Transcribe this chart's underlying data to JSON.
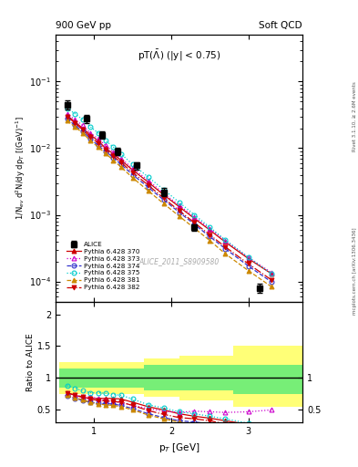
{
  "title_left": "900 GeV pp",
  "title_right": "Soft QCD",
  "plot_title": "pT($\\bar{\\Lambda}$) (|y| < 0.75)",
  "ylabel_main": "1/N$_{ev}$ d$^2$N/dy dp$_T$ [(GeV)$^{-1}$]",
  "ylabel_ratio": "Ratio to ALICE",
  "xlabel": "p$_T$ [GeV]",
  "watermark": "ALICE_2011_S8909580",
  "right_label": "mcplots.cern.ch [arXiv:1306.3436]",
  "rivet_label": "Rivet 3.1.10, ≥ 2.6M events",
  "alice_pt": [
    0.65,
    0.9,
    1.1,
    1.3,
    1.55,
    1.9,
    2.3,
    3.15
  ],
  "alice_y": [
    0.045,
    0.028,
    0.016,
    0.009,
    0.0055,
    0.0022,
    0.00065,
    8e-05
  ],
  "alice_yerr": [
    0.007,
    0.004,
    0.002,
    0.001,
    0.0007,
    0.0003,
    8e-05,
    1.2e-05
  ],
  "pythia_pt": [
    0.65,
    0.75,
    0.85,
    0.95,
    1.05,
    1.15,
    1.25,
    1.35,
    1.5,
    1.7,
    1.9,
    2.1,
    2.3,
    2.5,
    2.7,
    3.0,
    3.3
  ],
  "p370_y": [
    0.031,
    0.025,
    0.02,
    0.016,
    0.013,
    0.01,
    0.0082,
    0.0066,
    0.0047,
    0.0031,
    0.002,
    0.00133,
    0.00088,
    0.00059,
    0.00039,
    0.00022,
    0.00013
  ],
  "p373_y": [
    0.033,
    0.027,
    0.022,
    0.017,
    0.014,
    0.011,
    0.0088,
    0.007,
    0.005,
    0.0033,
    0.0021,
    0.0014,
    0.00093,
    0.00062,
    0.00041,
    0.00023,
    0.000135
  ],
  "p374_y": [
    0.028,
    0.022,
    0.018,
    0.014,
    0.011,
    0.009,
    0.0072,
    0.0057,
    0.004,
    0.0026,
    0.00168,
    0.0011,
    0.00072,
    0.00047,
    0.00031,
    0.00017,
    9.8e-05
  ],
  "p375_y": [
    0.04,
    0.033,
    0.027,
    0.021,
    0.017,
    0.013,
    0.0104,
    0.0082,
    0.0057,
    0.0037,
    0.0024,
    0.00155,
    0.001,
    0.00065,
    0.00042,
    0.00023,
    0.00013
  ],
  "p381_y": [
    0.026,
    0.021,
    0.017,
    0.013,
    0.0105,
    0.0083,
    0.0066,
    0.0052,
    0.0036,
    0.0023,
    0.00148,
    0.00096,
    0.00063,
    0.00041,
    0.00026,
    0.000145,
    8.3e-05
  ],
  "p382_y": [
    0.03,
    0.024,
    0.019,
    0.015,
    0.012,
    0.0096,
    0.0076,
    0.0061,
    0.0043,
    0.0028,
    0.00178,
    0.00116,
    0.00076,
    0.0005,
    0.00033,
    0.000183,
    0.000105
  ],
  "p370_ratio": [
    0.77,
    0.73,
    0.7,
    0.68,
    0.68,
    0.68,
    0.68,
    0.67,
    0.62,
    0.55,
    0.5,
    0.44,
    0.4,
    0.37,
    0.33,
    0.27,
    0.24
  ],
  "p373_ratio": [
    0.76,
    0.73,
    0.71,
    0.7,
    0.68,
    0.65,
    0.63,
    0.62,
    0.57,
    0.52,
    0.48,
    0.46,
    0.48,
    0.47,
    0.46,
    0.47,
    0.5
  ],
  "p374_ratio": [
    0.72,
    0.68,
    0.65,
    0.62,
    0.6,
    0.6,
    0.59,
    0.57,
    0.52,
    0.44,
    0.38,
    0.33,
    0.31,
    0.28,
    0.24,
    0.19,
    0.17
  ],
  "p375_ratio": [
    0.88,
    0.84,
    0.8,
    0.77,
    0.77,
    0.76,
    0.74,
    0.73,
    0.67,
    0.58,
    0.53,
    0.47,
    0.44,
    0.4,
    0.36,
    0.29,
    0.25
  ],
  "p381_ratio": [
    0.74,
    0.69,
    0.66,
    0.62,
    0.59,
    0.58,
    0.57,
    0.55,
    0.5,
    0.42,
    0.36,
    0.31,
    0.28,
    0.24,
    0.21,
    0.16,
    0.14
  ],
  "p382_ratio": [
    0.77,
    0.73,
    0.7,
    0.67,
    0.65,
    0.64,
    0.63,
    0.62,
    0.57,
    0.49,
    0.43,
    0.38,
    0.36,
    0.33,
    0.28,
    0.22,
    0.2
  ],
  "series": [
    {
      "label": "Pythia 6.428 370",
      "color": "#cc0000",
      "linestyle": "-",
      "marker": "^",
      "filled": true
    },
    {
      "label": "Pythia 6.428 373",
      "color": "#cc00cc",
      "linestyle": ":",
      "marker": "^",
      "filled": false
    },
    {
      "label": "Pythia 6.428 374",
      "color": "#3333cc",
      "linestyle": "--",
      "marker": "o",
      "filled": false
    },
    {
      "label": "Pythia 6.428 375",
      "color": "#00cccc",
      "linestyle": ":",
      "marker": "o",
      "filled": false
    },
    {
      "label": "Pythia 6.428 381",
      "color": "#cc8800",
      "linestyle": "--",
      "marker": "^",
      "filled": true
    },
    {
      "label": "Pythia 6.428 382",
      "color": "#cc0000",
      "linestyle": "-.",
      "marker": "v",
      "filled": true
    }
  ],
  "ylim_main": [
    5e-05,
    0.5
  ],
  "ylim_ratio": [
    0.3,
    2.2
  ],
  "xlim": [
    0.5,
    3.7
  ],
  "band_edges": [
    0.55,
    0.75,
    0.95,
    1.15,
    1.35,
    1.65,
    2.1,
    2.8,
    3.7
  ],
  "band_green_lo": [
    0.85,
    0.85,
    0.85,
    0.85,
    0.85,
    0.8,
    0.8,
    0.75,
    0.75
  ],
  "band_green_hi": [
    1.15,
    1.15,
    1.15,
    1.15,
    1.15,
    1.2,
    1.2,
    1.2,
    1.2
  ],
  "band_yellow_lo": [
    0.75,
    0.75,
    0.75,
    0.75,
    0.75,
    0.7,
    0.65,
    0.55,
    0.55
  ],
  "band_yellow_hi": [
    1.25,
    1.25,
    1.25,
    1.25,
    1.25,
    1.3,
    1.35,
    1.5,
    1.65
  ]
}
